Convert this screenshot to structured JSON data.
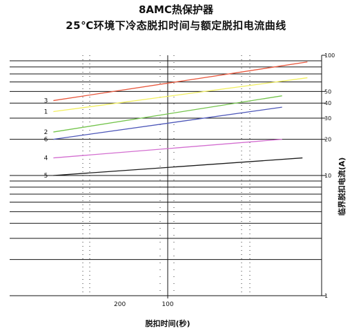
{
  "chart_data": {
    "type": "line",
    "title": "8AMC热保护器",
    "subtitle": "25℃环境下冷态脱扣时间与额定脱扣电流曲线",
    "xlabel": "脱扣时间(秒)",
    "ylabel": "临界脱扣电流(A)",
    "x_scale": "log",
    "x_reversed": true,
    "xlim": [
      1000,
      10
    ],
    "x_ticks": [
      200,
      100
    ],
    "y_scale": "log",
    "ylim": [
      1,
      100
    ],
    "y_ticks": [
      100,
      50,
      40,
      30,
      20,
      10,
      1
    ],
    "grid": true,
    "series": [
      {
        "name": "3",
        "color": "#e8553a",
        "x": [
          500,
          14
        ],
        "y": [
          42,
          88
        ]
      },
      {
        "name": "1",
        "color": "#f2ef5e",
        "x": [
          500,
          14
        ],
        "y": [
          34,
          65
        ]
      },
      {
        "name": "2",
        "color": "#72c34a",
        "x": [
          500,
          20
        ],
        "y": [
          23,
          46
        ]
      },
      {
        "name": "6",
        "color": "#4b55b8",
        "x": [
          500,
          20
        ],
        "y": [
          20,
          37
        ]
      },
      {
        "name": "4",
        "color": "#d36ed0",
        "x": [
          500,
          20
        ],
        "y": [
          14,
          20
        ]
      },
      {
        "name": "5",
        "color": "#1a1a1a",
        "x": [
          500,
          15
        ],
        "y": [
          10,
          14
        ]
      }
    ]
  }
}
